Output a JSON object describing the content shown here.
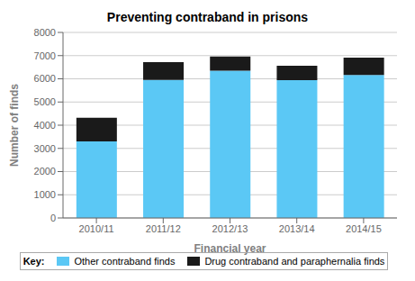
{
  "chart_data": {
    "type": "bar",
    "stacked": true,
    "title": "Preventing contraband in prisons",
    "xlabel": "Financial year",
    "ylabel": "Number of finds",
    "categories": [
      "2010/11",
      "2011/12",
      "2012/13",
      "2013/14",
      "2014/15"
    ],
    "series": [
      {
        "name": "Other contraband finds",
        "color": "#5bc8f5",
        "values": [
          3303,
          5950,
          6354,
          5941,
          6166
        ]
      },
      {
        "name": "Drug contraband and paraphernalia finds",
        "color": "#1a1a1a",
        "values": [
          1016,
          768,
          607,
          625,
          747
        ]
      }
    ],
    "ylim": [
      0,
      8000
    ],
    "yticks": [
      0,
      1000,
      2000,
      3000,
      4000,
      5000,
      6000,
      7000,
      8000
    ],
    "grid": true,
    "legend": "bottom",
    "legend_title": "Key:"
  }
}
